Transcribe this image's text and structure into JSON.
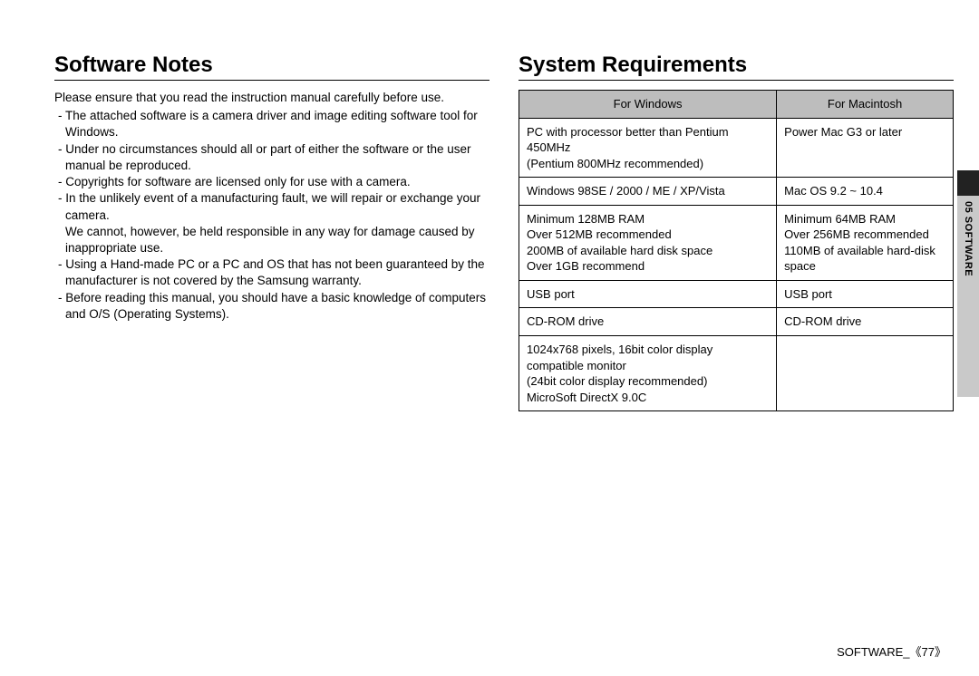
{
  "left": {
    "heading": "Software Notes",
    "intro": "Please ensure that you read the instruction manual carefully before use.",
    "bullets": [
      "The attached software is a camera driver and image editing software tool for Windows.",
      "Under no circumstances should all or part of either the software or the user manual be reproduced.",
      "Copyrights for software are licensed only for use with a camera.",
      "In the unlikely event of a manufacturing fault, we will repair or exchange your camera.\nWe cannot, however, be held responsible in any way for damage caused by inappropriate use.",
      "Using a Hand-made PC or a PC and OS that has not been guaranteed by the manufacturer is not covered by the Samsung warranty.",
      "Before reading this manual, you should have a basic knowledge of computers and O/S (Operating Systems)."
    ]
  },
  "right": {
    "heading": "System Requirements",
    "columns": [
      "For Windows",
      "For Macintosh"
    ],
    "rows": [
      [
        "PC with processor better than Pentium 450MHz\n(Pentium 800MHz recommended)",
        "Power Mac G3 or later"
      ],
      [
        "Windows 98SE / 2000 / ME / XP/Vista",
        "Mac OS 9.2 ~ 10.4"
      ],
      [
        "Minimum 128MB RAM\nOver 512MB recommended\n200MB of available hard disk space\nOver 1GB recommend",
        "Minimum 64MB RAM\nOver 256MB recommended\n110MB of available hard-disk space"
      ],
      [
        "USB port",
        "USB port"
      ],
      [
        "CD-ROM drive",
        "CD-ROM drive"
      ],
      [
        "1024x768 pixels, 16bit color display compatible monitor\n(24bit color display recommended)\nMicroSoft DirectX 9.0C",
        ""
      ]
    ]
  },
  "sideTab": "05 SOFTWARE",
  "footer": {
    "section": "SOFTWARE_",
    "page": "《77》"
  }
}
